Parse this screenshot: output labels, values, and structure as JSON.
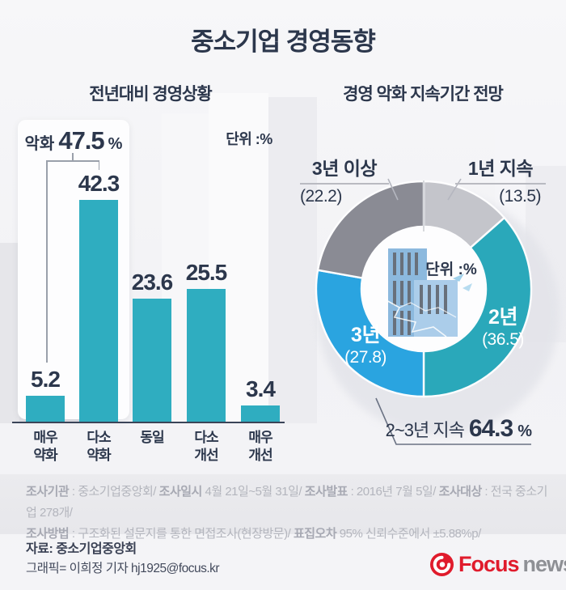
{
  "page_title": "중소기업 경영동향",
  "bar_section": {
    "title": "전년대비 경영상황",
    "unit_label": "단위 :%",
    "bracket_annotation": {
      "label": "악화",
      "value": "47.5",
      "unit": "%"
    }
  },
  "donut_section": {
    "title": "경영 악화 지속기간 전망",
    "unit_label": "단위 :%",
    "annotation": {
      "label": "2~3년 지속",
      "value": "64.3",
      "unit": "%"
    }
  },
  "chart_data": [
    {
      "type": "bar",
      "title": "전년대비 경영상황",
      "unit": "%",
      "categories": [
        "매우 약화",
        "다소 약화",
        "동일",
        "다소 개선",
        "매우 개선"
      ],
      "values": [
        5.2,
        42.3,
        23.6,
        25.5,
        3.4
      ],
      "bar_color": "#2fadc0",
      "ylim": [
        0,
        45
      ],
      "grid": false,
      "annotations": [
        {
          "text": "악화 47.5%",
          "covers": [
            "매우 약화",
            "다소 약화"
          ]
        }
      ]
    },
    {
      "type": "donut",
      "title": "경영 악화 지속기간 전망",
      "unit": "%",
      "start_angle_deg": 0,
      "direction": "clockwise",
      "segments": [
        {
          "label": "1년 지속",
          "value": 13.5,
          "color": "#c4c5cb"
        },
        {
          "label": "2년",
          "value": 36.5,
          "color": "#2aa8ba"
        },
        {
          "label": "3년",
          "value": 27.8,
          "color": "#2aa4e0"
        },
        {
          "label": "3년 이상",
          "value": 22.2,
          "color": "#8a8b94"
        }
      ],
      "annotations": [
        {
          "text": "2~3년 지속 64.3%",
          "covers": [
            "2년",
            "3년"
          ]
        }
      ]
    }
  ],
  "survey_info": {
    "line1": [
      {
        "label": "조사기관",
        "text": " : 중소기업중앙회/ "
      },
      {
        "label": "조사일시",
        "text": " 4월 21일~5월 31일/ "
      },
      {
        "label": "조사발표",
        "text": " : 2016년 7월 5일/ "
      },
      {
        "label": "조사대상",
        "text": " : 전국 중소기업 278개/"
      }
    ],
    "line2": [
      {
        "label": "조사방법",
        "text": " : 구조화된 설문지를 통한 면접조사(현장방문)/ "
      },
      {
        "label": "표집오차",
        "text": " 95% 신뢰수준에서 ±5.88%p/"
      }
    ]
  },
  "credits": {
    "source": "자료: 중소기업중앙회",
    "graphic": "그래픽= 이희정 기자 hj1925@focus.kr"
  },
  "logo": {
    "brand": "Focus",
    "suffix": "news"
  },
  "colors": {
    "accent_teal": "#2fadc0",
    "accent_blue": "#2aa4e0",
    "dark_navy": "#2c374c",
    "slice_dark_gray": "#8a8b94",
    "slice_light_gray": "#c4c5cb",
    "logo_red": "#e01b2c"
  }
}
